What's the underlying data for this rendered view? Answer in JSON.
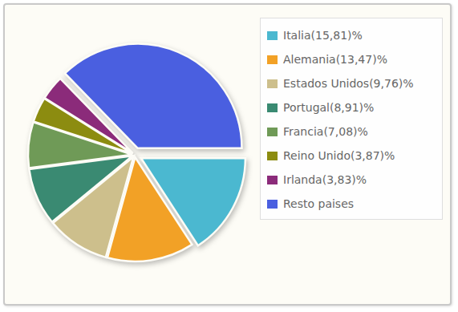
{
  "chart_data": {
    "type": "pie",
    "categories": [
      "Italia(15,81)%",
      "Alemania(13,47)%",
      "Estados Unidos(9,76)%",
      "Portugal(8,91)%",
      "Francia(7,08)%",
      "Reino Unido(3,87)%",
      "Irlanda(3,83)%",
      "Resto paises"
    ],
    "values": [
      15.81,
      13.47,
      9.76,
      8.91,
      7.08,
      3.87,
      3.83,
      37.27
    ],
    "colors": [
      "#4bb8d0",
      "#f2a126",
      "#cdbf8c",
      "#3a8a72",
      "#6f9a57",
      "#8c8c10",
      "#8b2b7a",
      "#4a5fe0"
    ],
    "legend": "right"
  }
}
